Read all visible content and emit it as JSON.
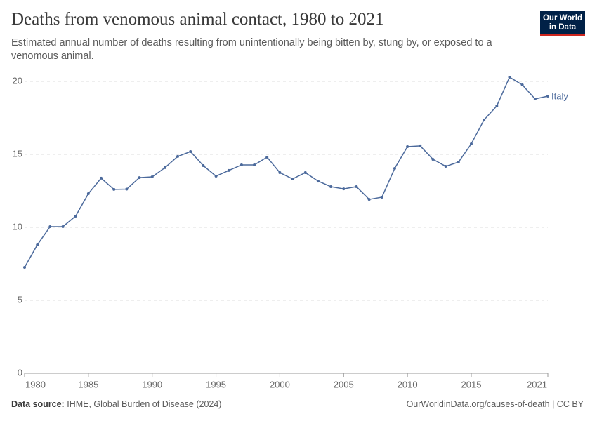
{
  "header": {
    "logo": [
      "Our World",
      "in Data"
    ]
  },
  "chart_data": {
    "type": "line",
    "title": "Deaths from venomous animal contact, 1980 to 2021",
    "subtitle": "Estimated annual number of deaths resulting from unintentionally being bitten by, stung by, or exposed to a venomous animal.",
    "x": [
      1980,
      1981,
      1982,
      1983,
      1984,
      1985,
      1986,
      1987,
      1988,
      1989,
      1990,
      1991,
      1992,
      1993,
      1994,
      1995,
      1996,
      1997,
      1998,
      1999,
      2000,
      2001,
      2002,
      2003,
      2004,
      2005,
      2006,
      2007,
      2008,
      2009,
      2010,
      2011,
      2012,
      2013,
      2014,
      2015,
      2016,
      2017,
      2018,
      2019,
      2020,
      2021
    ],
    "series": [
      {
        "name": "Italy",
        "color": "#4c6a9c",
        "values": [
          7.26,
          8.8,
          10.05,
          10.05,
          10.77,
          12.31,
          13.37,
          12.6,
          12.62,
          13.41,
          13.46,
          14.09,
          14.86,
          15.19,
          14.23,
          13.51,
          13.9,
          14.28,
          14.28,
          14.81,
          13.75,
          13.32,
          13.75,
          13.17,
          12.79,
          12.64,
          12.79,
          11.92,
          12.07,
          14.04,
          15.53,
          15.58,
          14.66,
          14.18,
          14.47,
          15.72,
          17.36,
          18.32,
          20.29,
          19.76,
          18.8,
          18.99
        ]
      }
    ],
    "xlim": [
      1980,
      2021
    ],
    "xticks": [
      1980,
      1985,
      1990,
      1995,
      2000,
      2005,
      2010,
      2015,
      2021
    ],
    "ylim": [
      0,
      20
    ],
    "yticks": [
      0,
      5,
      10,
      15,
      20
    ],
    "grid": true,
    "source_label": "Data source:",
    "source": "IHME, Global Burden of Disease (2024)",
    "url": "OurWorldinData.org/causes-of-death | CC BY"
  }
}
